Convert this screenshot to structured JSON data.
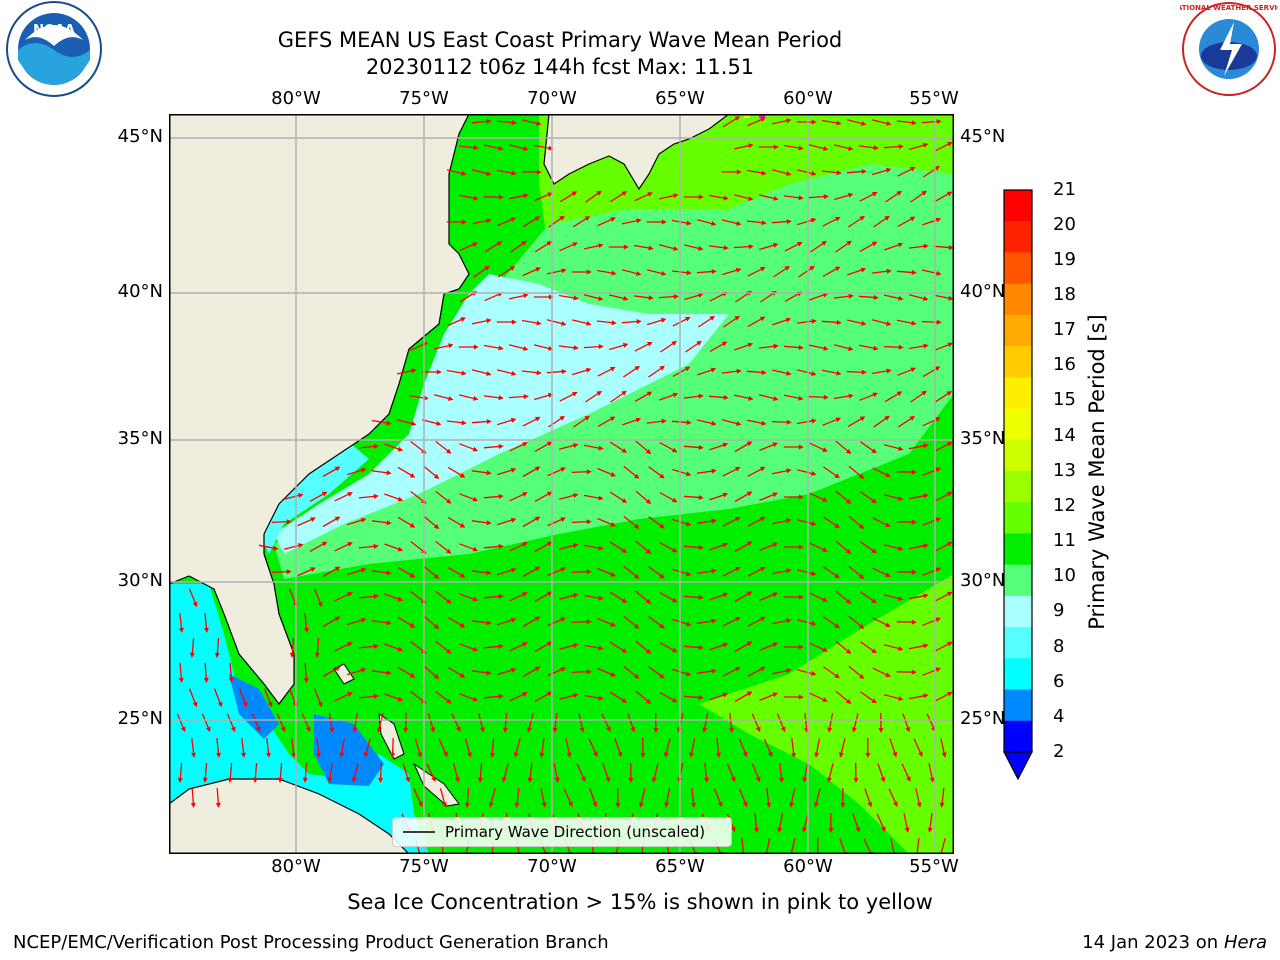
{
  "title": {
    "line1": "GEFS MEAN US East Coast Primary Wave Mean Period",
    "line2": "20230112 t06z 144h fcst   Max: 11.51"
  },
  "logos": {
    "left_text": "NOAA",
    "right_text": "NATIONAL WEATHER SERVICE"
  },
  "map": {
    "lon_ticks": [
      "80°W",
      "75°W",
      "70°W",
      "65°W",
      "60°W",
      "55°W"
    ],
    "lat_ticks_left": [
      "45°N",
      "40°N",
      "35°N",
      "30°N",
      "25°N"
    ],
    "lat_ticks_right": [
      "45°N",
      "40°N",
      "35°N",
      "30°N",
      "25°N"
    ],
    "legend_label": "Primary Wave Direction (unscaled)",
    "colors": {
      "land": "#efedde",
      "period_4_6": "#00ffff",
      "period_6_8": "#55ffff",
      "period_8_9": "#aaffff",
      "period_9_10": "#55ff77",
      "period_10_11": "#00ee00",
      "period_11_12": "#66ff00",
      "arrow": "#ff0000"
    }
  },
  "colorbar": {
    "label": "Primary Wave Mean Period [s]",
    "ticks": [
      "21",
      "20",
      "19",
      "18",
      "17",
      "16",
      "15",
      "14",
      "13",
      "12",
      "11",
      "10",
      "9",
      "8",
      "6",
      "4",
      "2"
    ],
    "colors": [
      "#ff0000",
      "#ff2200",
      "#ff5500",
      "#ff8800",
      "#ffaa00",
      "#ffcc00",
      "#ffee00",
      "#eeff00",
      "#ccff00",
      "#99ff00",
      "#66ff00",
      "#00ee00",
      "#55ff77",
      "#aaffff",
      "#55ffff",
      "#00ffff",
      "#0088ff",
      "#0000ff"
    ]
  },
  "footer": {
    "note": "Sea Ice Concentration > 15% is shown in pink to yellow",
    "credit": "NCEP/EMC/Verification Post Processing Product Generation Branch",
    "date": "14 Jan 2023 on",
    "host": "Hera"
  }
}
